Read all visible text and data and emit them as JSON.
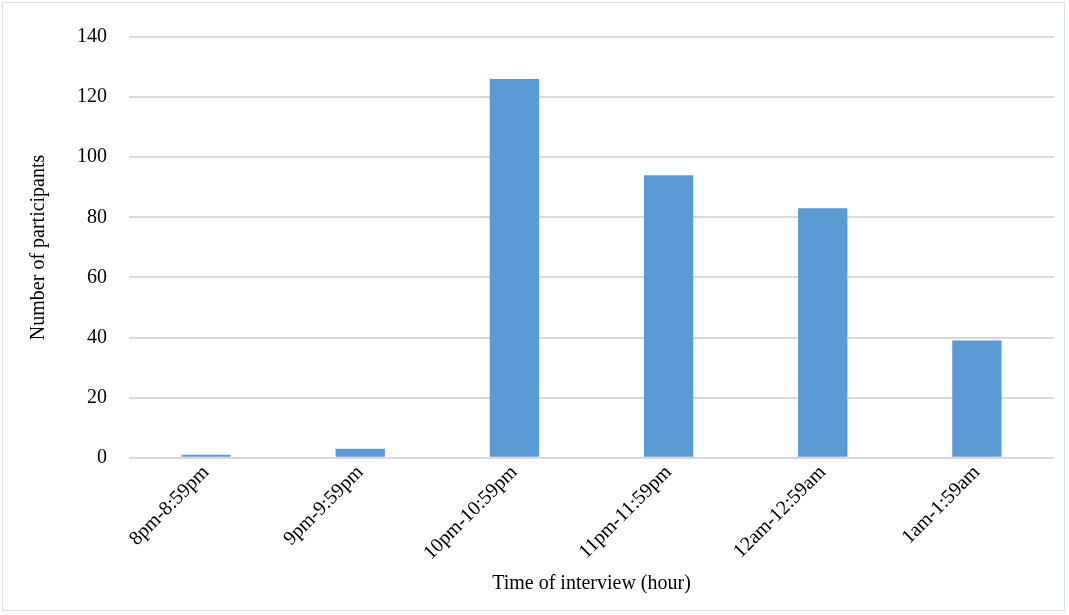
{
  "chart_data": {
    "type": "bar",
    "xlabel": "Time of interview (hour)",
    "ylabel": "Number of participants",
    "categories": [
      "8pm-8:59pm",
      "9pm-9:59pm",
      "10pm-10:59pm",
      "11pm-11:59pm",
      "12am-12:59am",
      "1am-1:59am"
    ],
    "values": [
      1,
      3,
      126,
      94,
      83,
      39
    ],
    "color": "#5b9bd5",
    "ylim": [
      0,
      140
    ],
    "yticks": [
      0,
      20,
      40,
      60,
      80,
      100,
      120,
      140
    ],
    "grid": "y",
    "legend": false
  }
}
